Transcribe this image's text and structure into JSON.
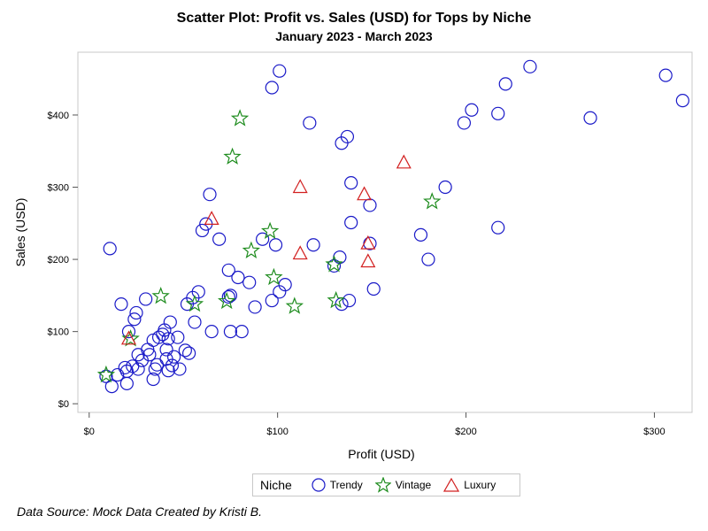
{
  "chart_data": {
    "type": "scatter",
    "title": "Scatter Plot: Profit vs. Sales (USD) for Tops by Niche",
    "subtitle": "January 2023 - March 2023",
    "xlabel": "Profit (USD)",
    "ylabel": "Sales (USD)",
    "xlim": [
      -6,
      320
    ],
    "ylim": [
      -12,
      487
    ],
    "x_ticks": [
      0,
      100,
      200,
      300
    ],
    "x_tick_labels": [
      "$0",
      "$100",
      "$200",
      "$300"
    ],
    "y_ticks": [
      0,
      100,
      200,
      300,
      400
    ],
    "y_tick_labels": [
      "$0",
      "$100",
      "$200",
      "$300",
      "$400"
    ],
    "grid": false,
    "legend": {
      "title": "Niche",
      "placement": "bottom",
      "entries": [
        "Trendy",
        "Vintage",
        "Luxury"
      ]
    },
    "series": [
      {
        "name": "Trendy",
        "marker": "circle",
        "color": "#1a1ac8",
        "points": [
          [
            9,
            38
          ],
          [
            12,
            24
          ],
          [
            15,
            40
          ],
          [
            17,
            138
          ],
          [
            11,
            215
          ],
          [
            19,
            50
          ],
          [
            20,
            28
          ],
          [
            20,
            45
          ],
          [
            21,
            100
          ],
          [
            23,
            52
          ],
          [
            24,
            117
          ],
          [
            25,
            126
          ],
          [
            26,
            48
          ],
          [
            26,
            68
          ],
          [
            28,
            60
          ],
          [
            30,
            145
          ],
          [
            31,
            75
          ],
          [
            32,
            68
          ],
          [
            34,
            88
          ],
          [
            34,
            34
          ],
          [
            35,
            48
          ],
          [
            36,
            54
          ],
          [
            37,
            92
          ],
          [
            39,
            96
          ],
          [
            40,
            102
          ],
          [
            41,
            62
          ],
          [
            41,
            75
          ],
          [
            42,
            90
          ],
          [
            42,
            46
          ],
          [
            43,
            113
          ],
          [
            44,
            53
          ],
          [
            45,
            65
          ],
          [
            47,
            92
          ],
          [
            48,
            48
          ],
          [
            51,
            74
          ],
          [
            52,
            138
          ],
          [
            53,
            70
          ],
          [
            55,
            147
          ],
          [
            56,
            113
          ],
          [
            58,
            155
          ],
          [
            60,
            240
          ],
          [
            62,
            249
          ],
          [
            64,
            290
          ],
          [
            65,
            100
          ],
          [
            69,
            228
          ],
          [
            74,
            148
          ],
          [
            74,
            185
          ],
          [
            75,
            150
          ],
          [
            75,
            100
          ],
          [
            79,
            175
          ],
          [
            81,
            100
          ],
          [
            85,
            168
          ],
          [
            88,
            134
          ],
          [
            92,
            228
          ],
          [
            97,
            438
          ],
          [
            97,
            143
          ],
          [
            99,
            220
          ],
          [
            101,
            461
          ],
          [
            101,
            155
          ],
          [
            104,
            165
          ],
          [
            117,
            389
          ],
          [
            119,
            220
          ],
          [
            130,
            191
          ],
          [
            133,
            203
          ],
          [
            134,
            138
          ],
          [
            134,
            361
          ],
          [
            137,
            370
          ],
          [
            138,
            143
          ],
          [
            139,
            251
          ],
          [
            139,
            306
          ],
          [
            149,
            275
          ],
          [
            149,
            222
          ],
          [
            151,
            159
          ],
          [
            176,
            234
          ],
          [
            180,
            200
          ],
          [
            189,
            300
          ],
          [
            199,
            389
          ],
          [
            203,
            407
          ],
          [
            217,
            402
          ],
          [
            217,
            244
          ],
          [
            221,
            443
          ],
          [
            234,
            467
          ],
          [
            266,
            396
          ],
          [
            306,
            455
          ],
          [
            315,
            420
          ]
        ]
      },
      {
        "name": "Vintage",
        "marker": "star",
        "color": "#1e8c1e",
        "points": [
          [
            9,
            40
          ],
          [
            22,
            90
          ],
          [
            38,
            149
          ],
          [
            56,
            138
          ],
          [
            73,
            142
          ],
          [
            76,
            342
          ],
          [
            80,
            395
          ],
          [
            86,
            212
          ],
          [
            96,
            239
          ],
          [
            98,
            175
          ],
          [
            109,
            135
          ],
          [
            130,
            193
          ],
          [
            131,
            143
          ],
          [
            182,
            280
          ]
        ]
      },
      {
        "name": "Luxury",
        "marker": "triangle",
        "color": "#d22020",
        "points": [
          [
            21,
            90
          ],
          [
            65,
            256
          ],
          [
            112,
            300
          ],
          [
            112,
            208
          ],
          [
            146,
            290
          ],
          [
            148,
            222
          ],
          [
            148,
            197
          ],
          [
            167,
            334
          ]
        ]
      }
    ],
    "footnote": "Data Source: Mock Data Created by Kristi B."
  }
}
